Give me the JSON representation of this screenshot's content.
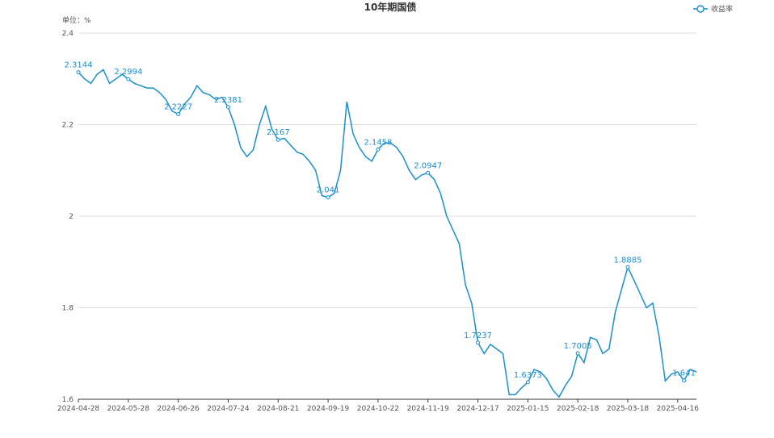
{
  "chart_data": {
    "type": "line",
    "title": "10年期国债",
    "y_unit_label": "单位：%",
    "categories": [
      "2024-04-28",
      null,
      null,
      null,
      null,
      null,
      null,
      null,
      "2024-05-28",
      null,
      null,
      null,
      null,
      null,
      null,
      null,
      "2024-06-26",
      null,
      null,
      null,
      null,
      null,
      null,
      null,
      "2024-07-24",
      null,
      null,
      null,
      null,
      null,
      null,
      null,
      "2024-08-21",
      null,
      null,
      null,
      null,
      null,
      null,
      null,
      "2024-09-19",
      null,
      null,
      null,
      null,
      null,
      null,
      null,
      "2024-10-22",
      null,
      null,
      null,
      null,
      null,
      null,
      null,
      "2024-11-19",
      null,
      null,
      null,
      null,
      null,
      null,
      null,
      "2024-12-17",
      null,
      null,
      null,
      null,
      null,
      null,
      null,
      "2025-01-15",
      null,
      null,
      null,
      null,
      null,
      null,
      null,
      "2025-02-18",
      null,
      null,
      null,
      null,
      null,
      null,
      null,
      "2025-03-18",
      null,
      null,
      null,
      null,
      null,
      null,
      null,
      "2025-04-16",
      null,
      null,
      null
    ],
    "series": [
      {
        "name": "收益率",
        "color": "#1a8fcf",
        "values": [
          2.3144,
          2.3,
          2.29,
          2.31,
          2.32,
          2.29,
          2.3,
          2.31,
          2.2994,
          2.29,
          2.285,
          2.28,
          2.28,
          2.27,
          2.255,
          2.23,
          2.2227,
          2.245,
          2.26,
          2.285,
          2.27,
          2.265,
          2.255,
          2.26,
          2.2381,
          2.2,
          2.15,
          2.13,
          2.145,
          2.2,
          2.24,
          2.19,
          2.167,
          2.17,
          2.155,
          2.14,
          2.135,
          2.12,
          2.1,
          2.045,
          2.041,
          2.05,
          2.1,
          2.25,
          2.18,
          2.15,
          2.13,
          2.12,
          2.1458,
          2.16,
          2.16,
          2.15,
          2.13,
          2.1,
          2.08,
          2.09,
          2.0947,
          2.08,
          2.05,
          2.0,
          1.97,
          1.94,
          1.85,
          1.81,
          1.7237,
          1.7,
          1.72,
          1.71,
          1.7,
          1.61,
          1.61,
          1.625,
          1.6373,
          1.665,
          1.66,
          1.645,
          1.62,
          1.605,
          1.63,
          1.65,
          1.7005,
          1.68,
          1.735,
          1.73,
          1.7,
          1.71,
          1.79,
          1.84,
          1.8885,
          1.86,
          1.83,
          1.8,
          1.81,
          1.74,
          1.64,
          1.655,
          1.66,
          1.641,
          1.665,
          1.66
        ],
        "value_labels": [
          "2.3144",
          null,
          null,
          null,
          null,
          null,
          null,
          null,
          "2.2994",
          null,
          null,
          null,
          null,
          null,
          null,
          null,
          "2.2227",
          null,
          null,
          null,
          null,
          null,
          null,
          null,
          "2.2381",
          null,
          null,
          null,
          null,
          null,
          null,
          null,
          "2.167",
          null,
          null,
          null,
          null,
          null,
          null,
          null,
          "2.041",
          null,
          null,
          null,
          null,
          null,
          null,
          null,
          "2.1458",
          null,
          null,
          null,
          null,
          null,
          null,
          null,
          "2.0947",
          null,
          null,
          null,
          null,
          null,
          null,
          null,
          "1.7237",
          null,
          null,
          null,
          null,
          null,
          null,
          null,
          "1.6373",
          null,
          null,
          null,
          null,
          null,
          null,
          null,
          "1.7005",
          null,
          null,
          null,
          null,
          null,
          null,
          null,
          "1.8885",
          null,
          null,
          null,
          null,
          null,
          null,
          null,
          null,
          "1.641",
          null,
          null
        ]
      }
    ],
    "ylim": [
      1.6,
      2.4
    ],
    "yticks": [
      1.6,
      1.8,
      2,
      2.2,
      2.4
    ],
    "grid": true,
    "legend": "top-right"
  }
}
